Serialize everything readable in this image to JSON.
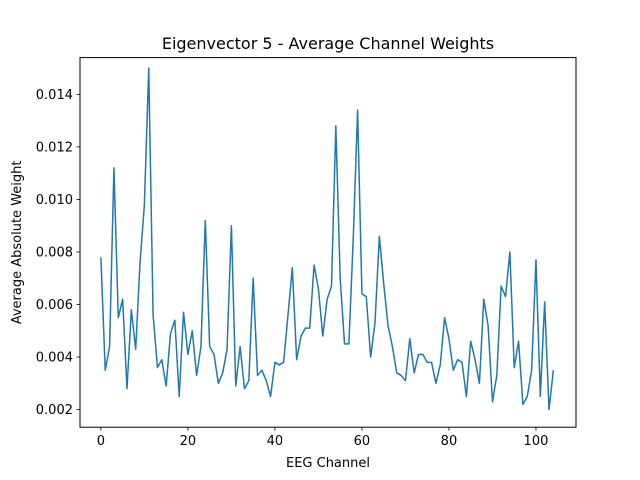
{
  "chart_data": {
    "type": "line",
    "title": "Eigenvector 5 - Average Channel Weights",
    "xlabel": "EEG Channel",
    "ylabel": "Average Absolute Weight",
    "xlim": [
      -4.8,
      109.2
    ],
    "ylim": [
      0.00133,
      0.0154
    ],
    "xticks": [
      0,
      20,
      40,
      60,
      80,
      100
    ],
    "yticks": [
      0.002,
      0.004,
      0.006,
      0.008,
      0.01,
      0.012,
      0.014
    ],
    "xtick_labels": [
      "0",
      "20",
      "40",
      "60",
      "80",
      "100"
    ],
    "ytick_labels": [
      "0.002",
      "0.004",
      "0.006",
      "0.008",
      "0.010",
      "0.012",
      "0.014"
    ],
    "grid": false,
    "series_color": "#1f77b4",
    "x": [
      0,
      1,
      2,
      3,
      4,
      5,
      6,
      7,
      8,
      9,
      10,
      11,
      12,
      13,
      14,
      15,
      16,
      17,
      18,
      19,
      20,
      21,
      22,
      23,
      24,
      25,
      26,
      27,
      28,
      29,
      30,
      31,
      32,
      33,
      34,
      35,
      36,
      37,
      38,
      39,
      40,
      41,
      42,
      43,
      44,
      45,
      46,
      47,
      48,
      49,
      50,
      51,
      52,
      53,
      54,
      55,
      56,
      57,
      58,
      59,
      60,
      61,
      62,
      63,
      64,
      65,
      66,
      67,
      68,
      69,
      70,
      71,
      72,
      73,
      74,
      75,
      76,
      77,
      78,
      79,
      80,
      81,
      82,
      83,
      84,
      85,
      86,
      87,
      88,
      89,
      90,
      91,
      92,
      93,
      94,
      95,
      96,
      97,
      98,
      99,
      100,
      101,
      102,
      103,
      104
    ],
    "y": [
      0.0078,
      0.0035,
      0.0044,
      0.0112,
      0.0055,
      0.0062,
      0.0028,
      0.0058,
      0.0043,
      0.0076,
      0.0098,
      0.015,
      0.0056,
      0.0036,
      0.0039,
      0.0029,
      0.0049,
      0.0054,
      0.0025,
      0.0057,
      0.0041,
      0.005,
      0.0033,
      0.0044,
      0.0092,
      0.0044,
      0.0041,
      0.003,
      0.0034,
      0.0043,
      0.009,
      0.0029,
      0.0044,
      0.0028,
      0.0031,
      0.007,
      0.0033,
      0.0035,
      0.0031,
      0.0025,
      0.0038,
      0.0037,
      0.0038,
      0.0056,
      0.0074,
      0.0039,
      0.0048,
      0.0051,
      0.0051,
      0.0075,
      0.0066,
      0.0048,
      0.0062,
      0.0067,
      0.0128,
      0.007,
      0.0045,
      0.0045,
      0.0085,
      0.0134,
      0.0064,
      0.0063,
      0.004,
      0.0053,
      0.0086,
      0.0068,
      0.0052,
      0.0044,
      0.0034,
      0.0033,
      0.0031,
      0.0047,
      0.0034,
      0.0041,
      0.0041,
      0.0038,
      0.0038,
      0.003,
      0.0037,
      0.0055,
      0.0047,
      0.0035,
      0.0039,
      0.0038,
      0.0025,
      0.0046,
      0.0039,
      0.003,
      0.0062,
      0.0052,
      0.0023,
      0.0033,
      0.0067,
      0.0063,
      0.008,
      0.0036,
      0.0046,
      0.0022,
      0.0025,
      0.0035,
      0.0077,
      0.0025,
      0.0061,
      0.002,
      0.0035
    ]
  }
}
